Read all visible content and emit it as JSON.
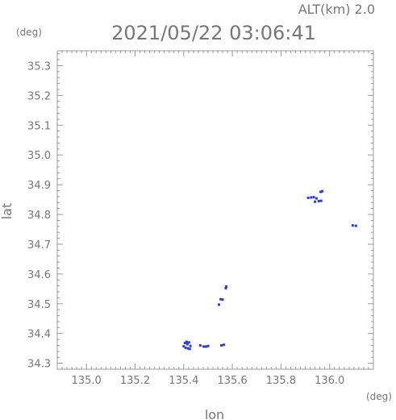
{
  "header": {
    "altitude": "ALT(km) 2.0",
    "timestamp": "2021/05/22 03:06:41"
  },
  "chart_data": {
    "type": "scatter",
    "title": "2021/05/22 03:06:41",
    "xlabel": "lon",
    "ylabel": "lat",
    "x_unit": "(deg)",
    "y_unit": "(deg)",
    "xlim": [
      134.88,
      136.18
    ],
    "ylim": [
      34.28,
      35.35
    ],
    "x_ticks": [
      "135.0",
      "135.2",
      "135.4",
      "135.6",
      "135.8",
      "136.0"
    ],
    "x_tick_values": [
      135.0,
      135.2,
      135.4,
      135.6,
      135.8,
      136.0
    ],
    "y_ticks": [
      "34.3",
      "34.4",
      "34.5",
      "34.6",
      "34.7",
      "34.8",
      "34.9",
      "35.0",
      "35.1",
      "35.2",
      "35.3"
    ],
    "y_tick_values": [
      34.3,
      34.4,
      34.5,
      34.6,
      34.7,
      34.8,
      34.9,
      35.0,
      35.1,
      35.2,
      35.3
    ],
    "grid": false,
    "marker_color": "#2a3fd6",
    "series": [
      {
        "points": [
          {
            "x": 135.405,
            "y": 34.368
          },
          {
            "x": 135.415,
            "y": 34.364
          },
          {
            "x": 135.422,
            "y": 34.37
          },
          {
            "x": 135.408,
            "y": 34.352
          },
          {
            "x": 135.418,
            "y": 34.35
          },
          {
            "x": 135.428,
            "y": 34.358
          },
          {
            "x": 135.4,
            "y": 34.357
          },
          {
            "x": 135.412,
            "y": 34.372
          },
          {
            "x": 135.425,
            "y": 34.348
          },
          {
            "x": 135.468,
            "y": 34.36
          },
          {
            "x": 135.482,
            "y": 34.356
          },
          {
            "x": 135.492,
            "y": 34.356
          },
          {
            "x": 135.5,
            "y": 34.358
          },
          {
            "x": 135.555,
            "y": 34.36
          },
          {
            "x": 135.565,
            "y": 34.362
          },
          {
            "x": 135.545,
            "y": 34.497
          },
          {
            "x": 135.552,
            "y": 34.515
          },
          {
            "x": 135.56,
            "y": 34.514
          },
          {
            "x": 135.573,
            "y": 34.552
          },
          {
            "x": 135.575,
            "y": 34.558
          },
          {
            "x": 135.912,
            "y": 34.856
          },
          {
            "x": 135.924,
            "y": 34.857
          },
          {
            "x": 135.935,
            "y": 34.858
          },
          {
            "x": 135.946,
            "y": 34.854
          },
          {
            "x": 135.94,
            "y": 34.843
          },
          {
            "x": 135.955,
            "y": 34.845
          },
          {
            "x": 135.965,
            "y": 34.846
          },
          {
            "x": 135.963,
            "y": 34.876
          },
          {
            "x": 135.97,
            "y": 34.878
          },
          {
            "x": 136.095,
            "y": 34.763
          },
          {
            "x": 136.108,
            "y": 34.762
          }
        ]
      }
    ]
  }
}
